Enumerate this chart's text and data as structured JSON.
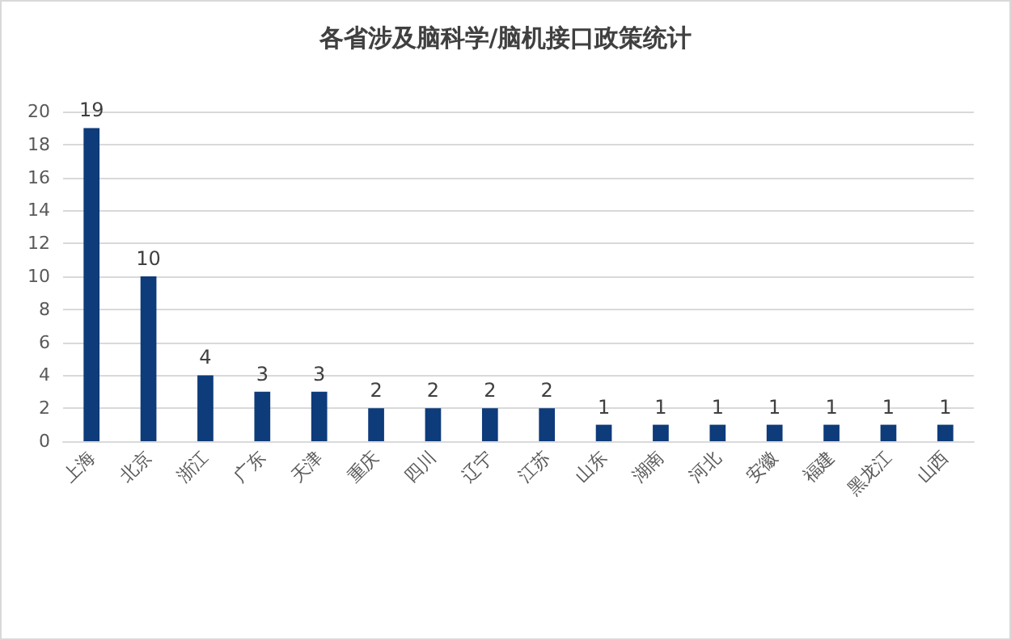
{
  "chart_data": {
    "type": "bar",
    "title": "各省涉及脑科学/脑机接口政策统计",
    "categories": [
      "上海",
      "北京",
      "浙江",
      "广东",
      "天津",
      "重庆",
      "四川",
      "辽宁",
      "江苏",
      "山东",
      "湖南",
      "河北",
      "安徽",
      "福建",
      "黑龙江",
      "山西"
    ],
    "values": [
      19,
      10,
      4,
      3,
      3,
      2,
      2,
      2,
      2,
      1,
      1,
      1,
      1,
      1,
      1,
      1
    ],
    "color": "#0e3b7a",
    "ylim": [
      0,
      20
    ],
    "yticks": [
      0,
      2,
      4,
      6,
      8,
      10,
      12,
      14,
      16,
      18,
      20
    ],
    "grid": "y",
    "data_labels": true
  }
}
